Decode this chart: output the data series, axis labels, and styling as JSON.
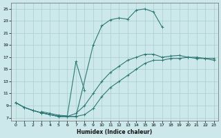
{
  "xlabel": "Humidex (Indice chaleur)",
  "ylabel": "",
  "xlim": [
    -0.5,
    23.5
  ],
  "ylim": [
    6.5,
    26.0
  ],
  "xticks": [
    0,
    1,
    2,
    3,
    4,
    5,
    6,
    7,
    8,
    9,
    10,
    11,
    12,
    13,
    14,
    15,
    16,
    17,
    18,
    19,
    20,
    21,
    22,
    23
  ],
  "yticks": [
    7,
    9,
    11,
    13,
    15,
    17,
    19,
    21,
    23,
    25
  ],
  "bg_color": "#cce8ea",
  "grid_color": "#a8cdd0",
  "line_color": "#2d7873",
  "curves": [
    {
      "x": [
        0,
        1,
        2,
        3,
        4,
        5,
        6,
        7,
        9,
        10,
        11,
        12,
        13,
        14,
        15,
        16,
        17
      ],
      "y": [
        9.5,
        8.7,
        8.2,
        7.8,
        7.5,
        7.2,
        7.2,
        7.2,
        19.0,
        22.2,
        23.2,
        23.5,
        23.3,
        24.8,
        25.0,
        24.5,
        22.0
      ]
    },
    {
      "x": [
        3,
        4,
        5,
        6,
        7,
        8
      ],
      "y": [
        8.0,
        7.7,
        7.4,
        7.3,
        16.3,
        11.5
      ]
    },
    {
      "x": [
        0,
        1,
        2,
        3,
        4,
        5,
        6,
        7,
        8,
        9,
        10,
        11,
        12,
        13,
        14,
        15,
        16,
        17,
        18,
        19,
        20,
        21,
        22,
        23
      ],
      "y": [
        9.5,
        8.7,
        8.2,
        7.8,
        7.5,
        7.2,
        7.2,
        7.2,
        7.5,
        8.5,
        10.5,
        12.0,
        13.0,
        14.0,
        15.0,
        16.0,
        16.5,
        16.5,
        16.8,
        16.8,
        17.0,
        16.8,
        16.8,
        16.5
      ]
    },
    {
      "x": [
        0,
        1,
        2,
        3,
        4,
        5,
        6,
        7,
        8,
        9,
        10,
        11,
        12,
        13,
        14,
        15,
        16,
        17,
        18,
        19,
        20,
        21,
        22,
        23
      ],
      "y": [
        9.5,
        8.7,
        8.2,
        7.8,
        7.5,
        7.2,
        7.2,
        7.7,
        9.0,
        11.0,
        13.0,
        14.5,
        15.5,
        16.5,
        17.0,
        17.5,
        17.5,
        17.0,
        17.2,
        17.3,
        17.0,
        17.0,
        16.8,
        16.8
      ]
    }
  ]
}
